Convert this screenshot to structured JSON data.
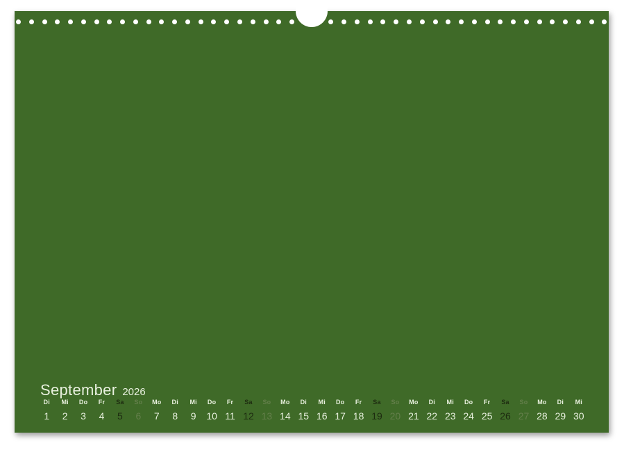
{
  "scene": {
    "background_color": "#ffffff"
  },
  "page": {
    "color": "#3f6a28",
    "binding": {
      "dot_count": 46,
      "dot_color": "#ffffff",
      "notch_color": "#ffffff"
    }
  },
  "calendar": {
    "month": "September",
    "year": "2026",
    "colors": {
      "text_light": "#e8f0de",
      "saturday": "#1d2b10",
      "sunday": "#647f4b"
    },
    "days": [
      {
        "weekday": "Di",
        "date": "1",
        "kind": "weekday"
      },
      {
        "weekday": "Mi",
        "date": "2",
        "kind": "weekday"
      },
      {
        "weekday": "Do",
        "date": "3",
        "kind": "weekday"
      },
      {
        "weekday": "Fr",
        "date": "4",
        "kind": "weekday"
      },
      {
        "weekday": "Sa",
        "date": "5",
        "kind": "saturday"
      },
      {
        "weekday": "So",
        "date": "6",
        "kind": "sunday"
      },
      {
        "weekday": "Mo",
        "date": "7",
        "kind": "weekday"
      },
      {
        "weekday": "Di",
        "date": "8",
        "kind": "weekday"
      },
      {
        "weekday": "Mi",
        "date": "9",
        "kind": "weekday"
      },
      {
        "weekday": "Do",
        "date": "10",
        "kind": "weekday"
      },
      {
        "weekday": "Fr",
        "date": "11",
        "kind": "weekday"
      },
      {
        "weekday": "Sa",
        "date": "12",
        "kind": "saturday"
      },
      {
        "weekday": "So",
        "date": "13",
        "kind": "sunday"
      },
      {
        "weekday": "Mo",
        "date": "14",
        "kind": "weekday"
      },
      {
        "weekday": "Di",
        "date": "15",
        "kind": "weekday"
      },
      {
        "weekday": "Mi",
        "date": "16",
        "kind": "weekday"
      },
      {
        "weekday": "Do",
        "date": "17",
        "kind": "weekday"
      },
      {
        "weekday": "Fr",
        "date": "18",
        "kind": "weekday"
      },
      {
        "weekday": "Sa",
        "date": "19",
        "kind": "saturday"
      },
      {
        "weekday": "So",
        "date": "20",
        "kind": "sunday"
      },
      {
        "weekday": "Mo",
        "date": "21",
        "kind": "weekday"
      },
      {
        "weekday": "Di",
        "date": "22",
        "kind": "weekday"
      },
      {
        "weekday": "Mi",
        "date": "23",
        "kind": "weekday"
      },
      {
        "weekday": "Do",
        "date": "24",
        "kind": "weekday"
      },
      {
        "weekday": "Fr",
        "date": "25",
        "kind": "weekday"
      },
      {
        "weekday": "Sa",
        "date": "26",
        "kind": "saturday"
      },
      {
        "weekday": "So",
        "date": "27",
        "kind": "sunday"
      },
      {
        "weekday": "Mo",
        "date": "28",
        "kind": "weekday"
      },
      {
        "weekday": "Di",
        "date": "29",
        "kind": "weekday"
      },
      {
        "weekday": "Mi",
        "date": "30",
        "kind": "weekday"
      }
    ]
  }
}
